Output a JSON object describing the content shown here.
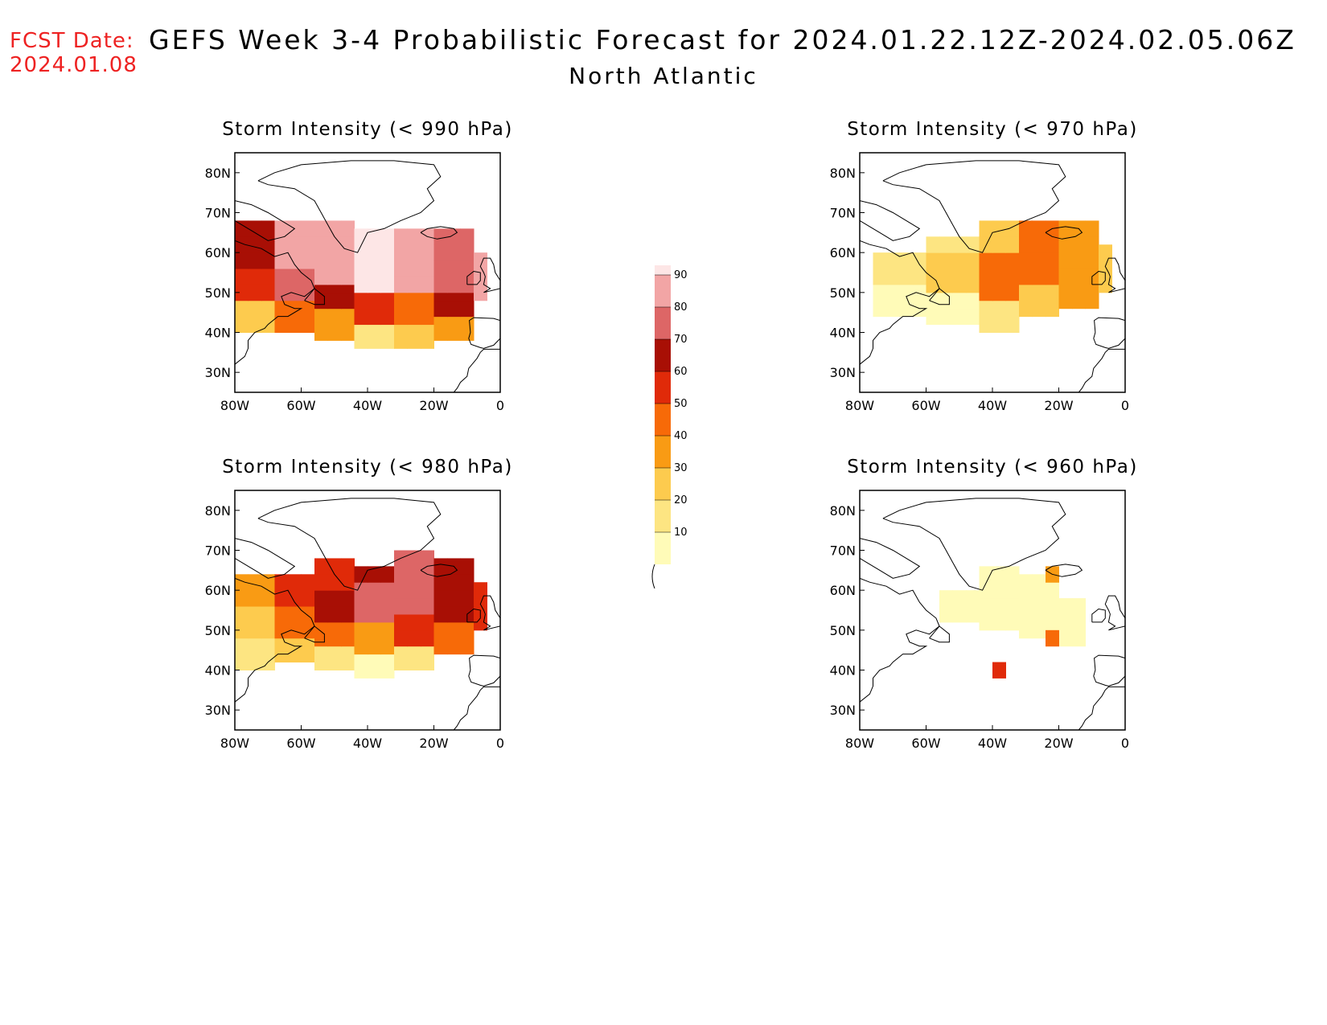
{
  "header": {
    "fcst_label": "FCST Date:",
    "fcst_date": "2024.01.08",
    "title": "GEFS Week 3-4 Probabilistic Forecast for 2024.01.22.12Z-2024.02.05.06Z",
    "subtitle": "North Atlantic"
  },
  "axes": {
    "lat_labels": [
      "80N",
      "70N",
      "60N",
      "50N",
      "40N",
      "30N"
    ],
    "lon_labels": [
      "80W",
      "60W",
      "40W",
      "20W",
      "0"
    ]
  },
  "colorbar": {
    "levels": [
      "10",
      "20",
      "30",
      "40",
      "50",
      "60",
      "70",
      "80",
      "90"
    ],
    "colors": [
      "#fffbb8",
      "#fde582",
      "#fdcb4e",
      "#f99b14",
      "#f76a08",
      "#e02a09",
      "#a80f05",
      "#dd6666",
      "#f2a5a5",
      "#fde6e6"
    ]
  },
  "panels": [
    {
      "id": "p990",
      "title": "Storm Intensity (< 990 hPa)"
    },
    {
      "id": "p980",
      "title": "Storm Intensity (< 980 hPa)"
    },
    {
      "id": "p970",
      "title": "Storm Intensity (< 970 hPa)"
    },
    {
      "id": "p960",
      "title": "Storm Intensity (< 960 hPa)"
    }
  ]
}
